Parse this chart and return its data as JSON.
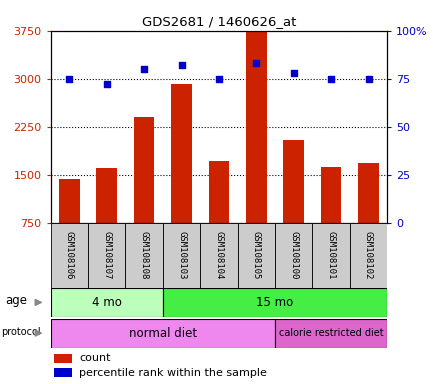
{
  "title": "GDS2681 / 1460626_at",
  "samples": [
    "GSM108106",
    "GSM108107",
    "GSM108108",
    "GSM108103",
    "GSM108104",
    "GSM108105",
    "GSM108100",
    "GSM108101",
    "GSM108102"
  ],
  "bar_values": [
    1430,
    1610,
    2400,
    2920,
    1720,
    3750,
    2050,
    1620,
    1680
  ],
  "scatter_values": [
    75,
    72,
    80,
    82,
    75,
    83,
    78,
    75,
    75
  ],
  "ylim_left": [
    750,
    3750
  ],
  "ylim_right": [
    0,
    100
  ],
  "yticks_left": [
    750,
    1500,
    2250,
    3000,
    3750
  ],
  "yticks_right": [
    0,
    25,
    50,
    75,
    100
  ],
  "bar_color": "#cc2200",
  "scatter_color": "#0000cc",
  "age_groups": [
    {
      "label": "4 mo",
      "start": 0,
      "end": 3,
      "color": "#bbffbb"
    },
    {
      "label": "15 mo",
      "start": 3,
      "end": 9,
      "color": "#44ee44"
    }
  ],
  "protocol_groups": [
    {
      "label": "normal diet",
      "start": 0,
      "end": 6,
      "color": "#ee88ee"
    },
    {
      "label": "calorie restricted diet",
      "start": 6,
      "end": 9,
      "color": "#dd66cc"
    }
  ],
  "legend_count_color": "#cc2200",
  "legend_pct_color": "#0000cc",
  "background_color": "#ffffff",
  "plot_bg_color": "#ffffff",
  "label_row_bg": "#cccccc",
  "left_axis_color": "#cc2200",
  "right_axis_color": "#0000cc",
  "grid_linestyle": ":",
  "grid_linewidth": 0.8,
  "grid_color": "#000000"
}
